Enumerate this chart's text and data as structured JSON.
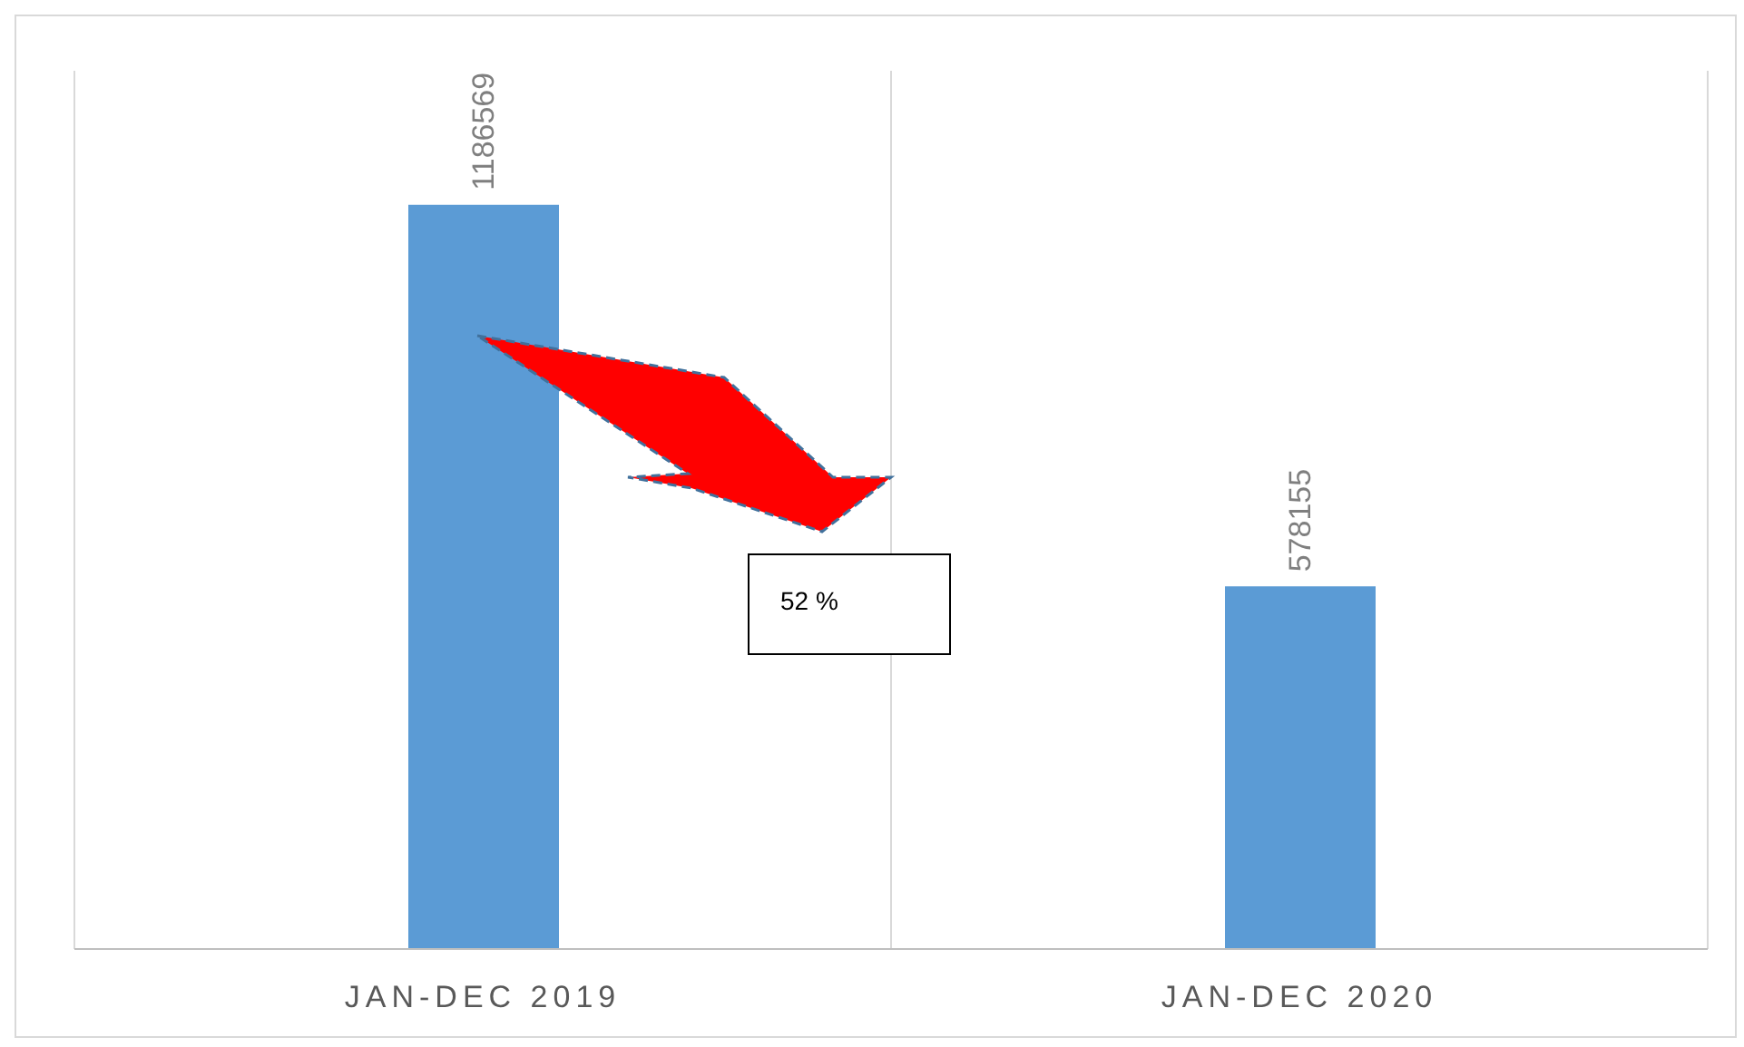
{
  "chart_data": {
    "type": "bar",
    "categories": [
      "JAN-DEC 2019",
      "JAN-DEC 2020"
    ],
    "values": [
      1186569,
      578155
    ],
    "color": "#5b9bd5",
    "data_labels": true,
    "grid": "x",
    "tick_labels": "x",
    "annotations": [
      "52 %"
    ]
  }
}
